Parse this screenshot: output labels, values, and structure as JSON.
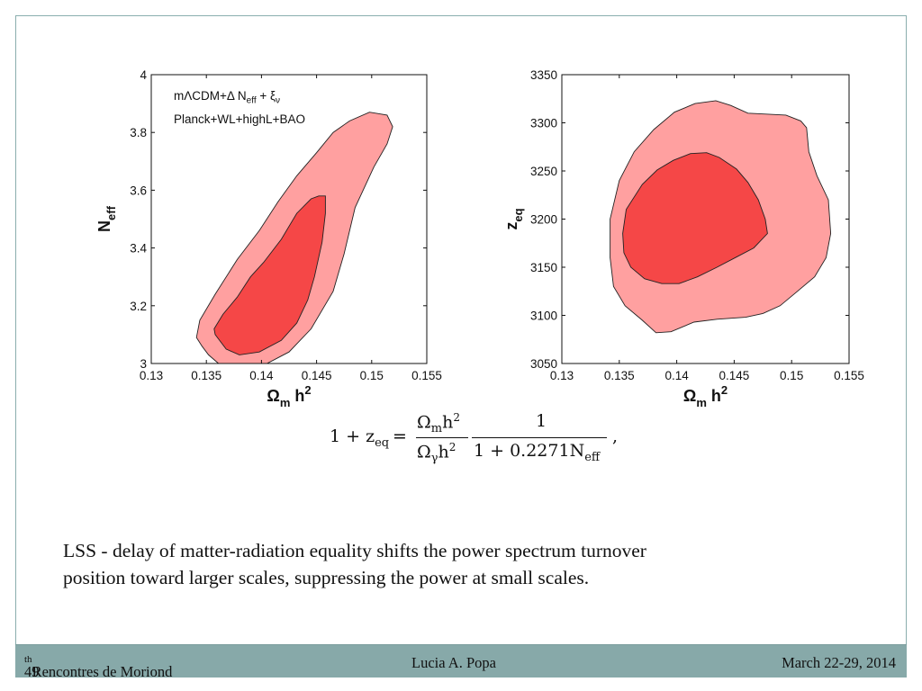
{
  "chart_data": [
    {
      "type": "contour",
      "legend": [
        "mΛCDM+Δ N",
        "eff",
        " + ξ",
        "ν",
        "Planck+WL+highL+BAO"
      ],
      "xlabel": {
        "main": "Ω",
        "sub": "m",
        "rest": " h",
        "sup": "2"
      },
      "ylabel": {
        "main": "N",
        "sub": "eff"
      },
      "xlim": [
        0.13,
        0.155
      ],
      "ylim": [
        3.0,
        4.0
      ],
      "xticks": [
        "0.13",
        "0.135",
        "0.14",
        "0.145",
        "0.15",
        "0.155"
      ],
      "yticks": [
        "3",
        "3.2",
        "3.4",
        "3.6",
        "3.8",
        "4"
      ],
      "contours": [
        {
          "level": "95%",
          "color": "#ffa0a0",
          "points": [
            [
              0.1341,
              3.09
            ],
            [
              0.1346,
              3.06
            ],
            [
              0.1352,
              3.03
            ],
            [
              0.1361,
              3.0
            ],
            [
              0.1405,
              3.0
            ],
            [
              0.1425,
              3.04
            ],
            [
              0.1445,
              3.12
            ],
            [
              0.1465,
              3.25
            ],
            [
              0.1475,
              3.38
            ],
            [
              0.1485,
              3.54
            ],
            [
              0.1502,
              3.68
            ],
            [
              0.1514,
              3.76
            ],
            [
              0.1519,
              3.82
            ],
            [
              0.1514,
              3.86
            ],
            [
              0.1498,
              3.87
            ],
            [
              0.148,
              3.84
            ],
            [
              0.1465,
              3.8
            ],
            [
              0.145,
              3.73
            ],
            [
              0.1432,
              3.65
            ],
            [
              0.1415,
              3.56
            ],
            [
              0.1398,
              3.46
            ],
            [
              0.1378,
              3.36
            ],
            [
              0.1358,
              3.24
            ],
            [
              0.1344,
              3.15
            ]
          ]
        },
        {
          "level": "68%",
          "color": "#f54747",
          "points": [
            [
              0.1358,
              3.1
            ],
            [
              0.1368,
              3.05
            ],
            [
              0.138,
              3.03
            ],
            [
              0.1398,
              3.04
            ],
            [
              0.1418,
              3.08
            ],
            [
              0.1432,
              3.14
            ],
            [
              0.1442,
              3.22
            ],
            [
              0.1448,
              3.3
            ],
            [
              0.1455,
              3.42
            ],
            [
              0.1458,
              3.52
            ],
            [
              0.1458,
              3.58
            ],
            [
              0.1452,
              3.58
            ],
            [
              0.1445,
              3.57
            ],
            [
              0.1432,
              3.52
            ],
            [
              0.1418,
              3.43
            ],
            [
              0.1402,
              3.35
            ],
            [
              0.139,
              3.3
            ],
            [
              0.1378,
              3.23
            ],
            [
              0.1365,
              3.17
            ],
            [
              0.1357,
              3.12
            ]
          ]
        }
      ]
    },
    {
      "type": "contour",
      "xlabel": {
        "main": "Ω",
        "sub": "m",
        "rest": " h",
        "sup": "2"
      },
      "ylabel": {
        "main": "z",
        "sub": "eq"
      },
      "xlim": [
        0.13,
        0.155
      ],
      "ylim": [
        3050,
        3350
      ],
      "xticks": [
        "0.13",
        "0.135",
        "0.14",
        "0.145",
        "0.15",
        "0.155"
      ],
      "yticks": [
        "3050",
        "3100",
        "3150",
        "3200",
        "3250",
        "3300",
        "3350"
      ],
      "contours": [
        {
          "level": "95%",
          "color": "#ffa0a0",
          "points": [
            [
              0.1342,
              3160
            ],
            [
              0.1342,
              3200
            ],
            [
              0.135,
              3240
            ],
            [
              0.1363,
              3270
            ],
            [
              0.138,
              3293
            ],
            [
              0.1398,
              3311
            ],
            [
              0.1416,
              3320
            ],
            [
              0.1434,
              3323
            ],
            [
              0.1447,
              3318
            ],
            [
              0.1462,
              3310
            ],
            [
              0.1495,
              3308
            ],
            [
              0.1508,
              3302
            ],
            [
              0.1513,
              3295
            ],
            [
              0.1515,
              3270
            ],
            [
              0.1522,
              3245
            ],
            [
              0.1532,
              3220
            ],
            [
              0.1534,
              3185
            ],
            [
              0.153,
              3160
            ],
            [
              0.152,
              3140
            ],
            [
              0.1505,
              3125
            ],
            [
              0.149,
              3110
            ],
            [
              0.1475,
              3102
            ],
            [
              0.146,
              3098
            ],
            [
              0.1435,
              3096
            ],
            [
              0.1415,
              3093
            ],
            [
              0.1395,
              3083
            ],
            [
              0.1382,
              3082
            ],
            [
              0.137,
              3095
            ],
            [
              0.1355,
              3110
            ],
            [
              0.1345,
              3130
            ]
          ]
        },
        {
          "level": "68%",
          "color": "#f54747",
          "points": [
            [
              0.1353,
              3185
            ],
            [
              0.1356,
              3210
            ],
            [
              0.137,
              3236
            ],
            [
              0.1383,
              3251
            ],
            [
              0.1397,
              3261
            ],
            [
              0.1412,
              3268
            ],
            [
              0.1426,
              3269
            ],
            [
              0.1437,
              3264
            ],
            [
              0.1452,
              3252
            ],
            [
              0.1462,
              3238
            ],
            [
              0.1471,
              3220
            ],
            [
              0.1477,
              3200
            ],
            [
              0.1479,
              3185
            ],
            [
              0.1467,
              3170
            ],
            [
              0.1451,
              3160
            ],
            [
              0.1435,
              3150
            ],
            [
              0.1418,
              3140
            ],
            [
              0.1402,
              3133
            ],
            [
              0.1387,
              3133
            ],
            [
              0.1372,
              3138
            ],
            [
              0.136,
              3150
            ],
            [
              0.1354,
              3165
            ]
          ]
        }
      ]
    }
  ],
  "equation": {
    "lhs": "1 + z",
    "lhs_sub": "eq",
    "eq": "=",
    "num1": "Ω",
    "num1_sub": "m",
    "num1_rest": "h",
    "num1_sup": "2",
    "den1": "Ω",
    "den1_sub": "γ",
    "den1_rest": "h",
    "den1_sup": "2",
    "num2": "1",
    "den2": "1 + 0.2271N",
    "den2_sub": "eff",
    "trail": ","
  },
  "text": {
    "line1": "LSS - delay of matter-radiation equality shifts the power spectrum turnover",
    "line2": "position toward larger scales,  suppressing the power at small scales."
  },
  "footer": {
    "sup": "th",
    "num": "49",
    "event": "  Rencontres de Moriond",
    "author": "Lucia A. Popa",
    "date": "March 22-29, 2014"
  },
  "colors": {
    "outer_contour": "#ffa0a0",
    "inner_contour": "#f54747",
    "footer_bar": "#87a9a9"
  }
}
